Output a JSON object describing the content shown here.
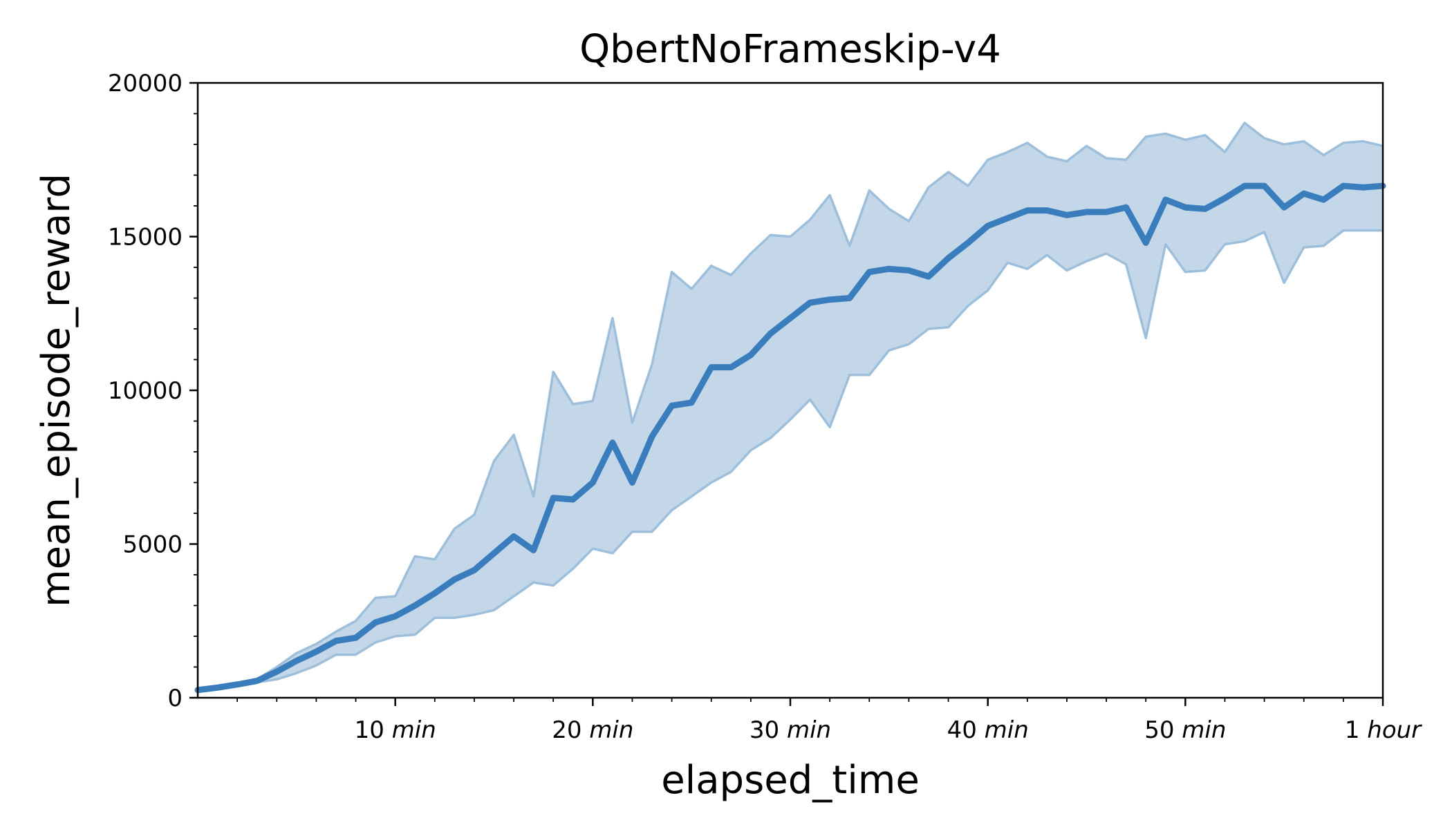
{
  "chart_data": {
    "type": "line",
    "title": "QbertNoFrameskip-v4",
    "xlabel": "elapsed_time",
    "ylabel": "mean_episode_reward",
    "x_unit": "minutes",
    "xlim": [
      0,
      60
    ],
    "ylim": [
      0,
      20000
    ],
    "grid": false,
    "legend": "none",
    "y_ticks": [
      0,
      5000,
      10000,
      15000,
      20000
    ],
    "y_tick_labels": [
      "0",
      "5000",
      "10000",
      "15000",
      "20000"
    ],
    "x_ticks": [
      {
        "value": 10,
        "num": "10",
        "unit": "min"
      },
      {
        "value": 20,
        "num": "20",
        "unit": "min"
      },
      {
        "value": 30,
        "num": "30",
        "unit": "min"
      },
      {
        "value": 40,
        "num": "40",
        "unit": "min"
      },
      {
        "value": 50,
        "num": "50",
        "unit": "min"
      },
      {
        "value": 60,
        "num": "1",
        "unit": "hour"
      }
    ],
    "colors": {
      "mean_line": "#3a7dbd",
      "band_fill": "#c3d7e9",
      "band_edge": "#9dbfdc"
    },
    "series": [
      {
        "style": "mean_with_band",
        "x": [
          0,
          1,
          2,
          3,
          4,
          5,
          6,
          7,
          8,
          9,
          10,
          11,
          12,
          13,
          14,
          15,
          16,
          17,
          18,
          19,
          20,
          21,
          22,
          23,
          24,
          25,
          26,
          27,
          28,
          29,
          30,
          31,
          32,
          33,
          34,
          35,
          36,
          37,
          38,
          39,
          40,
          41,
          42,
          43,
          44,
          45,
          46,
          47,
          48,
          49,
          50,
          51,
          52,
          53,
          54,
          55,
          56,
          57,
          58,
          59,
          60
        ],
        "mean": [
          250,
          330,
          430,
          550,
          850,
          1200,
          1500,
          1850,
          1950,
          2450,
          2650,
          3000,
          3400,
          3850,
          4150,
          4700,
          5250,
          4800,
          6500,
          6450,
          7000,
          8300,
          7000,
          8500,
          9500,
          9600,
          10750,
          10750,
          11150,
          11850,
          12350,
          12850,
          12950,
          13000,
          13850,
          13950,
          13900,
          13700,
          14300,
          14800,
          15350,
          15600,
          15850,
          15850,
          15700,
          15800,
          15800,
          15950,
          14800,
          16200,
          15950,
          15900,
          16250,
          16650,
          16650,
          15950,
          16400,
          16200,
          16650,
          16600,
          16650
        ],
        "upper": [
          250,
          350,
          450,
          600,
          1000,
          1450,
          1750,
          2150,
          2500,
          3250,
          3300,
          4600,
          4500,
          5500,
          5950,
          7700,
          8550,
          6550,
          10600,
          9550,
          9650,
          12350,
          8950,
          10850,
          13850,
          13300,
          14050,
          13750,
          14450,
          15050,
          15000,
          15550,
          16350,
          14700,
          16500,
          15900,
          15500,
          16600,
          17100,
          16650,
          17500,
          17750,
          18050,
          17600,
          17450,
          17950,
          17550,
          17500,
          18250,
          18350,
          18150,
          18300,
          17750,
          18700,
          18200,
          18000,
          18100,
          17650,
          18050,
          18100,
          17950
        ],
        "lower": [
          250,
          320,
          400,
          500,
          600,
          800,
          1050,
          1400,
          1400,
          1800,
          2000,
          2050,
          2600,
          2600,
          2700,
          2850,
          3300,
          3750,
          3650,
          4200,
          4850,
          4700,
          5400,
          5400,
          6100,
          6550,
          7000,
          7350,
          8050,
          8450,
          9050,
          9700,
          8800,
          10500,
          10500,
          11300,
          11500,
          12000,
          12050,
          12750,
          13250,
          14150,
          13950,
          14400,
          13900,
          14200,
          14450,
          14100,
          11700,
          14750,
          13850,
          13900,
          14750,
          14850,
          15150,
          13500,
          14650,
          14700,
          15200,
          15200,
          15200
        ]
      }
    ]
  }
}
